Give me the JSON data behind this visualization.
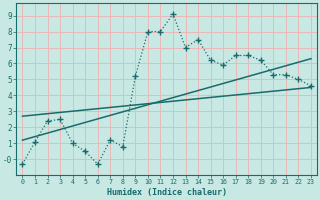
{
  "xlabel": "Humidex (Indice chaleur)",
  "bg_color": "#c8e8e4",
  "grid_color": "#e8b8b8",
  "line_color": "#1a6b6b",
  "xlim": [
    -0.5,
    23.5
  ],
  "ylim": [
    -1.0,
    9.8
  ],
  "xticks": [
    0,
    1,
    2,
    3,
    4,
    5,
    6,
    7,
    8,
    9,
    10,
    11,
    12,
    13,
    14,
    15,
    16,
    17,
    18,
    19,
    20,
    21,
    22,
    23
  ],
  "yticks": [
    0,
    1,
    2,
    3,
    4,
    5,
    6,
    7,
    8,
    9
  ],
  "ytick_labels": [
    "-0",
    "1",
    "2",
    "3",
    "4",
    "5",
    "6",
    "7",
    "8",
    "9"
  ],
  "line_x": [
    0,
    1,
    2,
    3,
    4,
    5,
    6,
    7,
    8,
    9,
    10,
    11,
    12,
    13,
    14,
    15,
    16,
    17,
    18,
    19,
    20,
    21,
    22,
    23
  ],
  "line_y": [
    -0.3,
    1.1,
    2.4,
    2.5,
    1.0,
    0.5,
    -0.3,
    1.2,
    0.8,
    5.2,
    8.0,
    8.0,
    9.1,
    7.0,
    7.5,
    6.2,
    5.9,
    6.5,
    6.5,
    6.2,
    5.3,
    5.3,
    5.0,
    4.6
  ],
  "trend1_x": [
    0,
    23
  ],
  "trend1_y": [
    2.7,
    4.5
  ],
  "trend2_x": [
    0,
    23
  ],
  "trend2_y": [
    1.2,
    6.3
  ]
}
